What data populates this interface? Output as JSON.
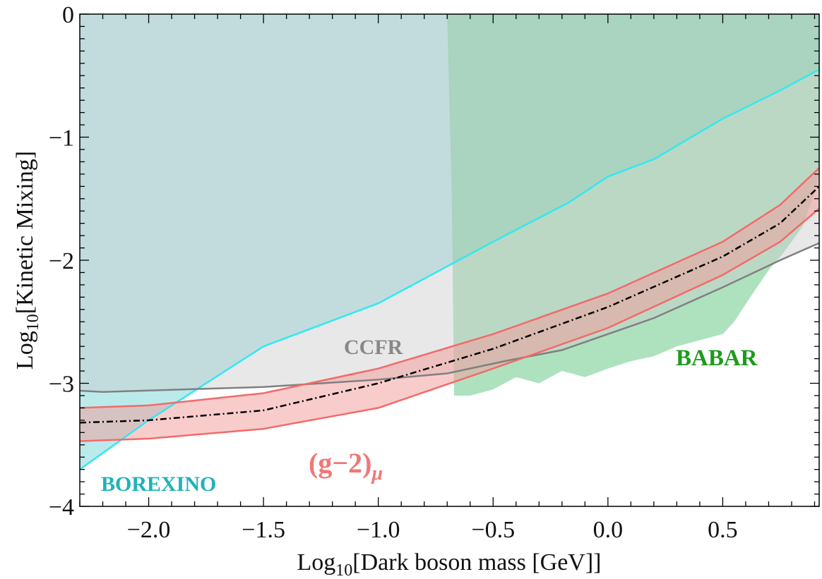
{
  "chart_data": {
    "type": "area",
    "xlabel": "Log",
    "xlabel_sub": "10",
    "xlabel_rest": "[Dark boson mass [GeV]]",
    "ylabel": "Log",
    "ylabel_sub": "10",
    "ylabel_rest": "[Kinetic Mixing]",
    "xlim": [
      -2.3,
      0.92
    ],
    "ylim": [
      -4,
      0
    ],
    "x_ticks": [
      -2.0,
      -1.5,
      -1.0,
      -0.5,
      0.0,
      0.5
    ],
    "x_tick_labels": [
      "−2.0",
      "−1.5",
      "−1.0",
      "−0.5",
      "0.0",
      "0.5"
    ],
    "y_ticks": [
      0,
      -1,
      -2,
      -3,
      -4
    ],
    "y_tick_labels": [
      "0",
      "−1",
      "−2",
      "−3",
      "−4"
    ],
    "grid": false,
    "colors": {
      "borexino_fill": "#b7e9ea",
      "borexino_line": "#33e8f0",
      "borexino_label": "#1fb3b8",
      "babar_fill": "#6ccb8a",
      "babar_label": "#1e9a1e",
      "ccfr_fill": "#cccccc",
      "ccfr_line": "#808080",
      "ccfr_label": "#888888",
      "g2_fill": "#f39a9a",
      "g2_line": "#f36a6a",
      "g2_label": "#f17777",
      "g2_central": "#000000"
    },
    "series": [
      {
        "name": "BOREXINO",
        "boundary": [
          [
            -2.3,
            -3.7
          ],
          [
            -2.0,
            -3.3
          ],
          [
            -1.5,
            -2.7
          ],
          [
            -1.0,
            -2.35
          ],
          [
            -0.5,
            -1.85
          ],
          [
            -0.17,
            -1.53
          ],
          [
            0.0,
            -1.32
          ],
          [
            0.2,
            -1.18
          ],
          [
            0.5,
            -0.85
          ],
          [
            0.75,
            -0.62
          ],
          [
            0.92,
            -0.45
          ]
        ]
      },
      {
        "name": "BABAR",
        "boundary": [
          [
            -0.7,
            0.0
          ],
          [
            -0.68,
            -1.5
          ],
          [
            -0.67,
            -3.1
          ],
          [
            -0.6,
            -3.1
          ],
          [
            -0.5,
            -3.05
          ],
          [
            -0.4,
            -2.95
          ],
          [
            -0.3,
            -3.0
          ],
          [
            -0.2,
            -2.9
          ],
          [
            -0.1,
            -2.95
          ],
          [
            0.0,
            -2.88
          ],
          [
            0.1,
            -2.82
          ],
          [
            0.2,
            -2.78
          ],
          [
            0.3,
            -2.7
          ],
          [
            0.4,
            -2.65
          ],
          [
            0.5,
            -2.6
          ],
          [
            0.55,
            -2.5
          ],
          [
            0.62,
            -2.3
          ],
          [
            0.7,
            -2.08
          ],
          [
            0.76,
            -1.95
          ],
          [
            0.8,
            -1.85
          ],
          [
            0.85,
            -1.72
          ],
          [
            0.9,
            -1.45
          ],
          [
            0.92,
            -1.3
          ]
        ]
      },
      {
        "name": "CCFR",
        "boundary": [
          [
            -2.3,
            -3.06
          ],
          [
            -2.2,
            -3.07
          ],
          [
            -1.5,
            -3.03
          ],
          [
            -1.0,
            -2.97
          ],
          [
            -0.7,
            -2.92
          ],
          [
            -0.45,
            -2.82
          ],
          [
            -0.2,
            -2.73
          ],
          [
            0.0,
            -2.6
          ],
          [
            0.2,
            -2.47
          ],
          [
            0.5,
            -2.22
          ],
          [
            0.75,
            -2.0
          ],
          [
            0.92,
            -1.86
          ]
        ]
      },
      {
        "name": "(g−2)μ",
        "upper": [
          [
            -2.3,
            -3.2
          ],
          [
            -2.0,
            -3.18
          ],
          [
            -1.5,
            -3.08
          ],
          [
            -1.0,
            -2.88
          ],
          [
            -0.5,
            -2.6
          ],
          [
            0.0,
            -2.27
          ],
          [
            0.5,
            -1.85
          ],
          [
            0.75,
            -1.55
          ],
          [
            0.92,
            -1.25
          ]
        ],
        "central": [
          [
            -2.3,
            -3.32
          ],
          [
            -2.0,
            -3.3
          ],
          [
            -1.5,
            -3.22
          ],
          [
            -1.0,
            -3.0
          ],
          [
            -0.5,
            -2.72
          ],
          [
            0.0,
            -2.38
          ],
          [
            0.5,
            -1.97
          ],
          [
            0.75,
            -1.7
          ],
          [
            0.92,
            -1.4
          ]
        ],
        "lower": [
          [
            -2.3,
            -3.47
          ],
          [
            -2.0,
            -3.45
          ],
          [
            -1.5,
            -3.37
          ],
          [
            -1.0,
            -3.2
          ],
          [
            -0.5,
            -2.88
          ],
          [
            0.0,
            -2.55
          ],
          [
            0.5,
            -2.12
          ],
          [
            0.75,
            -1.85
          ],
          [
            0.92,
            -1.58
          ]
        ]
      }
    ],
    "annotations": {
      "ccfr": "CCFR",
      "babar": "BABAR",
      "borexino": "BOREXINO",
      "g2_main": "(g−2)",
      "g2_sub": "μ"
    }
  }
}
